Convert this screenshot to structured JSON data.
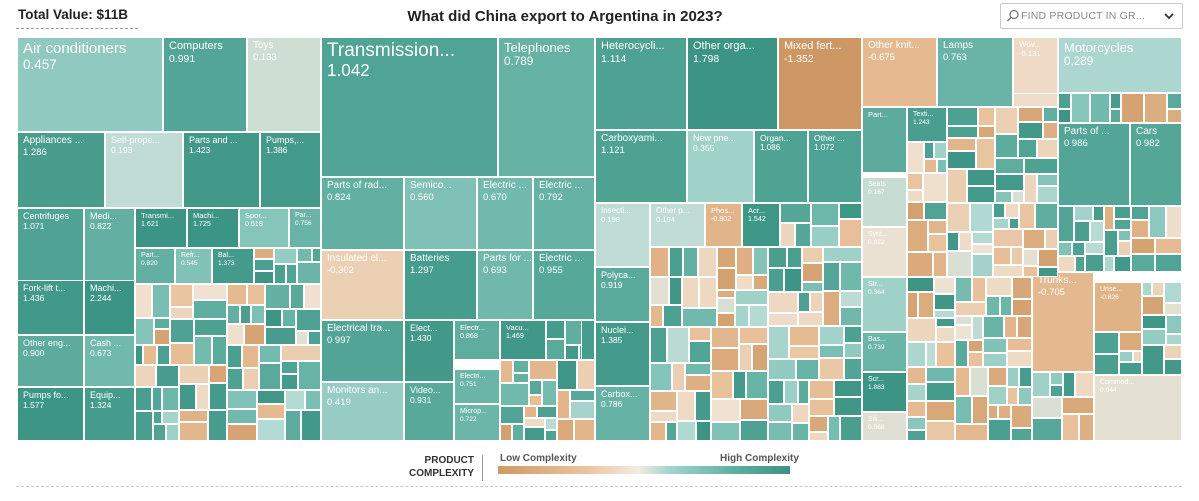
{
  "header": {
    "total_value": "Total Value: $11B",
    "title": "What did China export to Argentina in 2023?",
    "search_placeholder": "FIND PRODUCT IN GR..."
  },
  "legend": {
    "label_line1": "PRODUCT",
    "label_line2": "COMPLEXITY",
    "low": "Low Complexity",
    "high": "High Complexity"
  },
  "colors": {
    "low": "#cf9a64",
    "mid": "#f3ece2",
    "high": "#3d9283",
    "cell_border": "#ffffff"
  },
  "chart_data": {
    "type": "treemap",
    "title": "What did China export to Argentina in 2023?",
    "total": "$11B",
    "color_scale": "product complexity (low to high)",
    "items": [
      {
        "name": "Air conditioners",
        "value": "0.457"
      },
      {
        "name": "Computers",
        "value": "0.991"
      },
      {
        "name": "Toys",
        "value": "0.133"
      },
      {
        "name": "Appliances ...",
        "value": "1.286"
      },
      {
        "name": "Self-prope...",
        "value": "0.193"
      },
      {
        "name": "Parts and ...",
        "value": "1.423"
      },
      {
        "name": "Pumps,...",
        "value": "1.386"
      },
      {
        "name": "Centrifuges",
        "value": "1.071"
      },
      {
        "name": "Medi...",
        "value": "0.822"
      },
      {
        "name": "Transmi...",
        "value": "1.621"
      },
      {
        "name": "Machi...",
        "value": "1.725"
      },
      {
        "name": "Spor...",
        "value": "0.518"
      },
      {
        "name": "Par...",
        "value": "0.756"
      },
      {
        "name": "Part...",
        "value": "0.820"
      },
      {
        "name": "Refr...",
        "value": "0.545"
      },
      {
        "name": "Bal...",
        "value": "1.373"
      },
      {
        "name": "Fork-lift t...",
        "value": "1.436"
      },
      {
        "name": "Machi...",
        "value": "2.244"
      },
      {
        "name": "Other eng...",
        "value": "0.900"
      },
      {
        "name": "Cash ...",
        "value": "0.673"
      },
      {
        "name": "Pumps fo...",
        "value": "1.577"
      },
      {
        "name": "Equip...",
        "value": "1.324"
      },
      {
        "name": "Transmission...",
        "value": "1.042"
      },
      {
        "name": "Telephones",
        "value": "0.789"
      },
      {
        "name": "Parts of rad...",
        "value": "0.824"
      },
      {
        "name": "Semico...",
        "value": "0.560"
      },
      {
        "name": "Electric ...",
        "value": "0.670"
      },
      {
        "name": "Electric ...",
        "value": "0.792"
      },
      {
        "name": "Insulated el...",
        "value": "-0.302"
      },
      {
        "name": "Batteries",
        "value": "1.297"
      },
      {
        "name": "Parts for ...",
        "value": "0.693"
      },
      {
        "name": "Electric ...",
        "value": "0.955"
      },
      {
        "name": "Electrical tra...",
        "value": "0.997"
      },
      {
        "name": "Elect...",
        "value": "1.430"
      },
      {
        "name": "Electr...",
        "value": "0.868"
      },
      {
        "name": "Vacu...",
        "value": "1.469"
      },
      {
        "name": "Elect...",
        "value": "0.526"
      },
      {
        "name": "Monitors an...",
        "value": "0.419"
      },
      {
        "name": "Video...",
        "value": "0.931"
      },
      {
        "name": "Electri...",
        "value": "0.751"
      },
      {
        "name": "Microp...",
        "value": "0.722"
      },
      {
        "name": "Heterocycli...",
        "value": "1.114"
      },
      {
        "name": "Other orga...",
        "value": "1.798"
      },
      {
        "name": "Mixed fert...",
        "value": "-1.352"
      },
      {
        "name": "Carboxyami...",
        "value": "1.121"
      },
      {
        "name": "New pne...",
        "value": "0.355"
      },
      {
        "name": "Organ...",
        "value": "1.086"
      },
      {
        "name": "Other ...",
        "value": "1.072"
      },
      {
        "name": "Insecti...",
        "value": "0.198"
      },
      {
        "name": "Other p...",
        "value": "0.194"
      },
      {
        "name": "Phos...",
        "value": "-0.802"
      },
      {
        "name": "Acr...",
        "value": "1.542"
      },
      {
        "name": "Polyca...",
        "value": "0.919"
      },
      {
        "name": "Nuclei...",
        "value": "1.385"
      },
      {
        "name": "Carbox...",
        "value": "0.786"
      },
      {
        "name": "Other knit...",
        "value": "-0.675"
      },
      {
        "name": "Lamps",
        "value": "0.763"
      },
      {
        "name": "Wov...",
        "value": "-0.131"
      },
      {
        "name": "Motorcycles",
        "value": "0.289"
      },
      {
        "name": "Part...",
        "value": ""
      },
      {
        "name": "Texti...",
        "value": "1.243"
      },
      {
        "name": "Parts of ...",
        "value": "0.986"
      },
      {
        "name": "Cars",
        "value": "0.982"
      },
      {
        "name": "Seats",
        "value": "0.167"
      },
      {
        "name": "Synt...",
        "value": "0.022"
      },
      {
        "name": "Trunks...",
        "value": "-0.705"
      },
      {
        "name": "Unse...",
        "value": "-0.826"
      },
      {
        "name": "Str...",
        "value": "0.364"
      },
      {
        "name": "Bas...",
        "value": "0.739"
      },
      {
        "name": "Scr...",
        "value": "1.883"
      },
      {
        "name": "Commod...",
        "value": "0.044"
      },
      {
        "name": "Sili...",
        "value": "0.068"
      }
    ]
  }
}
